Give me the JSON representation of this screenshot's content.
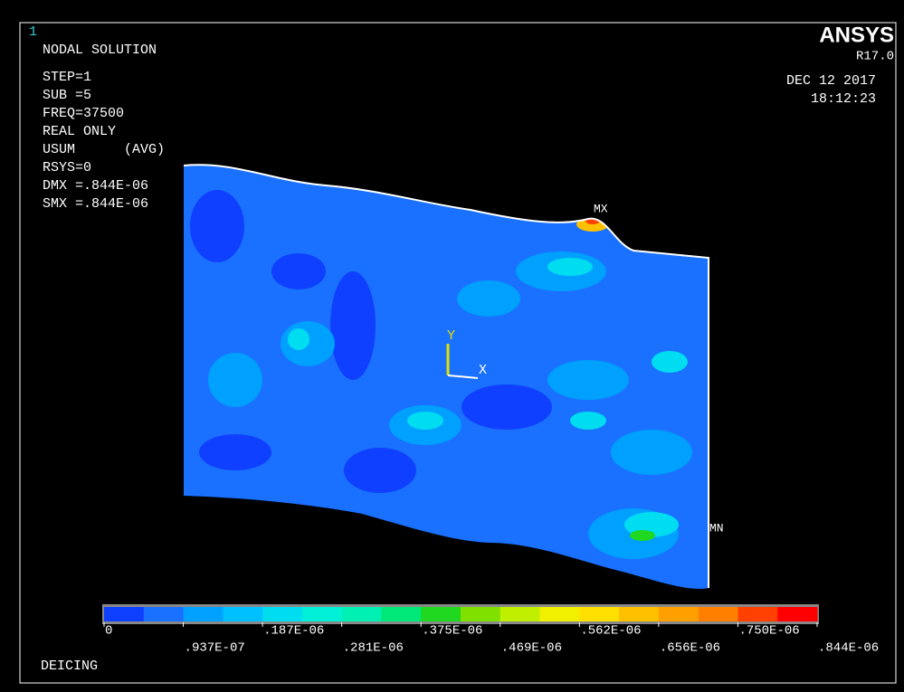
{
  "window": {
    "number": "1",
    "title": "DEICING"
  },
  "info": {
    "title": "NODAL SOLUTION",
    "lines": [
      "STEP=1",
      "SUB =5",
      "FREQ=37500",
      "REAL ONLY",
      "USUM      (AVG)",
      "RSYS=0",
      "DMX =.844E-06",
      "SMX =.844E-06"
    ]
  },
  "logo": {
    "name": "ANSYS",
    "version": "R17.0"
  },
  "timestamp": {
    "date": "DEC 12 2017",
    "time": "18:12:23"
  },
  "plot": {
    "max_label": "MX",
    "min_label": "MN",
    "axis_x": "X",
    "axis_y": "Y"
  },
  "legend": {
    "labels": [
      "0",
      ".937E-07",
      ".187E-06",
      ".281E-06",
      ".375E-06",
      ".469E-06",
      ".562E-06",
      ".656E-06",
      ".750E-06",
      ".844E-06"
    ],
    "colors": [
      "#1040ff",
      "#1a70ff",
      "#00a0ff",
      "#00c0ff",
      "#00dcf0",
      "#00f0d8",
      "#00f0b4",
      "#00e878",
      "#20d820",
      "#80e000",
      "#c0f000",
      "#f0f000",
      "#ffe000",
      "#ffc000",
      "#ffa000",
      "#ff8000",
      "#ff4000",
      "#ff0000"
    ]
  }
}
